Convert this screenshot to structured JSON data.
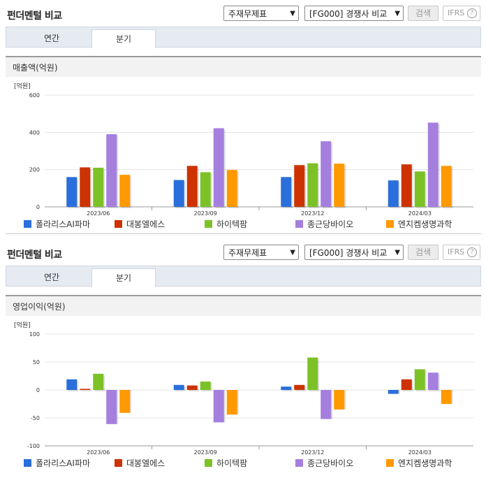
{
  "colors": {
    "series": [
      "#2a6fdb",
      "#cc3300",
      "#7cc227",
      "#a57fde",
      "#ff9900"
    ]
  },
  "legend": [
    "폴라리스AI파마",
    "대봉엘에스",
    "하이텍팜",
    "종근당바이오",
    "엔지켐생명과학"
  ],
  "panels": [
    {
      "title": "펀더멘털 비교",
      "select_statement": "주재무제표",
      "select_compare": "[FG000] 경쟁사 비교",
      "search_label": "검색",
      "ifrs_label": "IFRS",
      "help_icon": "?",
      "tabs": [
        "연간",
        "분기"
      ],
      "section_title": "매출액(억원)",
      "chart_data": {
        "type": "bar",
        "unit_label": "[억원]",
        "categories": [
          "2023/06",
          "2023/09",
          "2023/12",
          "2024/03"
        ],
        "series": [
          {
            "name": "폴라리스AI파마",
            "values": [
              160,
              144,
              160,
              142
            ]
          },
          {
            "name": "대봉엘에스",
            "values": [
              212,
              220,
              224,
              228
            ]
          },
          {
            "name": "하이텍팜",
            "values": [
              210,
              186,
              234,
              190
            ]
          },
          {
            "name": "종근당바이오",
            "values": [
              390,
              422,
              352,
              452
            ]
          },
          {
            "name": "엔지켐생명과학",
            "values": [
              172,
              198,
              232,
              220
            ]
          }
        ],
        "ylim": [
          0,
          600
        ],
        "yticks": [
          0,
          200,
          400,
          600
        ],
        "grid": true,
        "legend_position": "bottom"
      }
    },
    {
      "title": "펀더멘털 비교",
      "select_statement": "주재무제표",
      "select_compare": "[FG000] 경쟁사 비교",
      "search_label": "검색",
      "ifrs_label": "IFRS",
      "help_icon": "?",
      "tabs": [
        "연간",
        "분기"
      ],
      "section_title": "영업이익(억원)",
      "chart_data": {
        "type": "bar",
        "unit_label": "[억원]",
        "categories": [
          "2023/06",
          "2023/09",
          "2023/12",
          "2024/03"
        ],
        "series": [
          {
            "name": "폴라리스AI파마",
            "values": [
              19,
              9,
              6,
              -7
            ]
          },
          {
            "name": "대봉엘에스",
            "values": [
              2,
              8,
              9,
              19
            ]
          },
          {
            "name": "하이텍팜",
            "values": [
              29,
              15,
              58,
              37
            ]
          },
          {
            "name": "종근당바이오",
            "values": [
              -61,
              -58,
              -52,
              31
            ]
          },
          {
            "name": "엔지켐생명과학",
            "values": [
              -41,
              -44,
              -35,
              -25
            ]
          }
        ],
        "ylim": [
          -100,
          100
        ],
        "yticks": [
          -100,
          -50,
          0,
          50,
          100
        ],
        "grid": true,
        "legend_position": "bottom"
      }
    }
  ]
}
